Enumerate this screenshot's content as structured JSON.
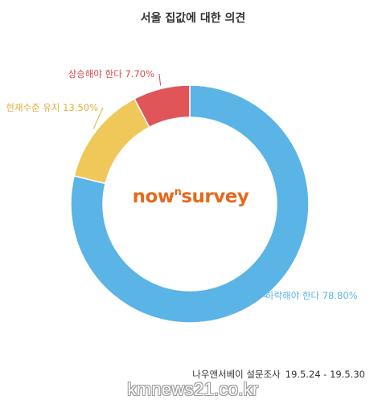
{
  "title": "서울 집값에 대한 의견",
  "logo": {
    "main": "now",
    "sup": "n",
    "tail": "survey"
  },
  "source": {
    "name": "나우앤서베이 설문조사",
    "dates": "19.5.24 - 19.5.30"
  },
  "watermark": "kmnews21.co.kr",
  "colors": {
    "falling": "#5ab4e5",
    "maintain": "#f0c85a",
    "rising": "#e05558",
    "logo": "#e46a1e"
  },
  "chart_data": {
    "type": "pie",
    "title": "서울 집값에 대한 의견",
    "slices": [
      {
        "label": "하락해야 한다",
        "value": 78.8,
        "display": "78.80%",
        "color": "#5ab4e5"
      },
      {
        "label": "현재수준 유지",
        "value": 13.5,
        "display": "13.50%",
        "color": "#f0c85a"
      },
      {
        "label": "상승해야 한다",
        "value": 7.7,
        "display": "7.70%",
        "color": "#e05558"
      }
    ]
  }
}
